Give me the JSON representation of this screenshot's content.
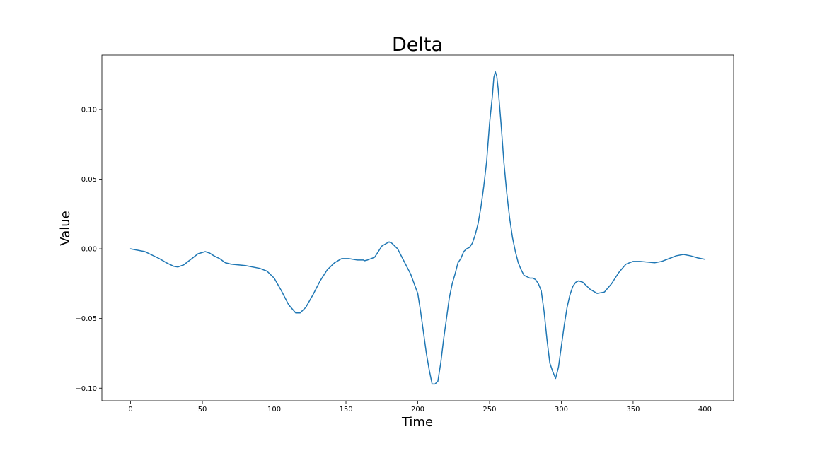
{
  "chart_data": {
    "type": "line",
    "title": "Delta",
    "xlabel": "Time",
    "ylabel": "Value",
    "xlim": [
      -20,
      420
    ],
    "ylim": [
      -0.109,
      0.139
    ],
    "xticks": [
      0,
      50,
      100,
      150,
      200,
      250,
      300,
      350,
      400
    ],
    "xtick_labels": [
      "0",
      "50",
      "100",
      "150",
      "200",
      "250",
      "300",
      "350",
      "400"
    ],
    "yticks": [
      -0.1,
      -0.05,
      0.0,
      0.05,
      0.1
    ],
    "ytick_labels": [
      "−0.10",
      "−0.05",
      "0.00",
      "0.05",
      "0.10"
    ],
    "grid": false,
    "line_color": "#1f77b4",
    "series": [
      {
        "x": [
          0,
          10,
          20,
          25,
          30,
          33,
          37,
          42,
          47,
          52,
          55,
          58,
          62,
          66,
          70,
          80,
          90,
          95,
          100,
          105,
          110,
          115,
          118,
          122,
          127,
          132,
          137,
          142,
          147,
          152,
          155,
          158,
          162,
          163,
          165,
          170,
          175,
          180,
          182,
          186,
          190,
          195,
          200,
          202,
          204,
          206,
          208,
          210,
          212,
          214,
          216,
          218,
          220,
          222,
          224,
          226,
          228,
          230,
          232,
          234,
          236,
          238,
          240,
          242,
          244,
          246,
          248,
          250,
          251,
          252,
          253,
          254,
          255,
          256,
          258,
          260,
          262,
          264,
          266,
          268,
          270,
          272,
          274,
          276,
          278,
          280,
          282,
          284,
          286,
          288,
          290,
          292,
          294,
          296,
          298,
          300,
          302,
          304,
          306,
          308,
          310,
          312,
          315,
          320,
          325,
          330,
          335,
          340,
          345,
          350,
          355,
          360,
          365,
          370,
          375,
          380,
          385,
          390,
          395,
          400
        ],
        "y": [
          0.0,
          -0.002,
          -0.007,
          -0.01,
          -0.0125,
          -0.013,
          -0.0115,
          -0.0075,
          -0.0035,
          -0.002,
          -0.003,
          -0.005,
          -0.007,
          -0.01,
          -0.011,
          -0.012,
          -0.014,
          -0.016,
          -0.021,
          -0.03,
          -0.04,
          -0.046,
          -0.046,
          -0.042,
          -0.033,
          -0.023,
          -0.015,
          -0.01,
          -0.007,
          -0.007,
          -0.0075,
          -0.008,
          -0.008,
          -0.0085,
          -0.008,
          -0.006,
          0.002,
          0.005,
          0.004,
          0.0,
          -0.008,
          -0.018,
          -0.032,
          -0.045,
          -0.06,
          -0.075,
          -0.087,
          -0.097,
          -0.097,
          -0.095,
          -0.082,
          -0.065,
          -0.05,
          -0.035,
          -0.025,
          -0.018,
          -0.01,
          -0.007,
          -0.002,
          0.0,
          0.001,
          0.004,
          0.01,
          0.018,
          0.03,
          0.045,
          0.063,
          0.09,
          0.1,
          0.11,
          0.123,
          0.127,
          0.124,
          0.115,
          0.09,
          0.062,
          0.04,
          0.022,
          0.008,
          -0.002,
          -0.01,
          -0.015,
          -0.019,
          -0.02,
          -0.021,
          -0.021,
          -0.022,
          -0.025,
          -0.03,
          -0.045,
          -0.065,
          -0.082,
          -0.088,
          -0.093,
          -0.085,
          -0.07,
          -0.055,
          -0.042,
          -0.033,
          -0.027,
          -0.024,
          -0.023,
          -0.024,
          -0.029,
          -0.032,
          -0.031,
          -0.025,
          -0.017,
          -0.011,
          -0.009,
          -0.009,
          -0.0095,
          -0.01,
          -0.009,
          -0.007,
          -0.005,
          -0.004,
          -0.005,
          -0.0065,
          -0.0075
        ]
      }
    ]
  }
}
